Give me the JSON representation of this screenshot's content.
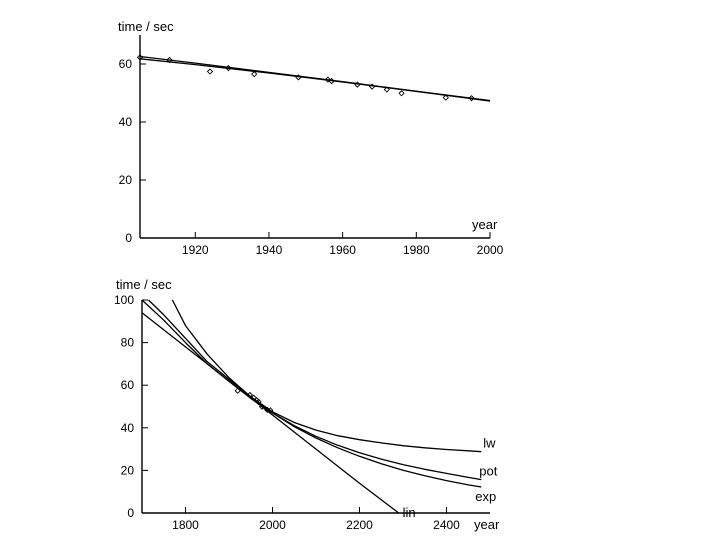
{
  "chart_data": [
    {
      "type": "scatter",
      "ylabel": "time / sec",
      "xlabel": "year",
      "xlim": [
        1905,
        2000
      ],
      "ylim": [
        0,
        70
      ],
      "x_ticks": [
        1920,
        1940,
        1960,
        1980,
        2000
      ],
      "y_ticks": [
        0,
        20,
        40,
        60
      ],
      "x_tick_labels": [
        "1920",
        "1940",
        "1960",
        "1980",
        "2000"
      ],
      "y_tick_labels": [
        "0",
        "20",
        "40",
        "60"
      ],
      "grid": false,
      "points": {
        "x": [
          1905,
          1913,
          1924,
          1929,
          1936,
          1948,
          1956,
          1957,
          1964,
          1968,
          1972,
          1976,
          1988,
          1995
        ],
        "y": [
          62.3,
          61.4,
          57.4,
          58.6,
          56.5,
          55.4,
          54.6,
          54.1,
          52.9,
          52.2,
          51.2,
          49.9,
          48.4,
          48.2
        ]
      },
      "fits": [
        {
          "x": [
            1905,
            1920,
            1940,
            1960,
            1980,
            2000
          ],
          "y": [
            62.6,
            60.3,
            57.1,
            53.9,
            50.6,
            47.4
          ]
        },
        {
          "x": [
            1905,
            1920,
            1940,
            1960,
            1980,
            2000
          ],
          "y": [
            61.8,
            59.8,
            56.9,
            53.8,
            50.6,
            47.2
          ]
        }
      ]
    },
    {
      "type": "line",
      "ylabel": "time / sec",
      "xlabel": "year",
      "xlim": [
        1700,
        2500
      ],
      "ylim": [
        0,
        100
      ],
      "x_ticks": [
        1800,
        2000,
        2200,
        2400
      ],
      "y_ticks": [
        0,
        20,
        40,
        60,
        80,
        100
      ],
      "x_tick_labels": [
        "1800",
        "2000",
        "2200",
        "2400"
      ],
      "y_tick_labels": [
        "0",
        "20",
        "40",
        "60",
        "80",
        "100"
      ],
      "grid": false,
      "series": [
        {
          "name": "lw",
          "x": [
            1770,
            1800,
            1850,
            1900,
            1950,
            2000,
            2050,
            2100,
            2150,
            2200,
            2250,
            2300,
            2350,
            2400,
            2450,
            2480
          ],
          "y": [
            100,
            88,
            74.5,
            63.5,
            54.5,
            47.5,
            42.5,
            38.9,
            36.3,
            34.4,
            32.9,
            31.6,
            30.6,
            29.8,
            29.2,
            28.8
          ]
        },
        {
          "name": "pot",
          "x": [
            1715,
            1750,
            1800,
            1850,
            1900,
            1950,
            2000,
            2050,
            2100,
            2150,
            2200,
            2250,
            2300,
            2350,
            2400,
            2450,
            2480
          ],
          "y": [
            100,
            93,
            82,
            71,
            62.8,
            54.5,
            47,
            41,
            36,
            31.8,
            28.3,
            25.3,
            22.7,
            20.5,
            18.6,
            16.7,
            15.7
          ]
        },
        {
          "name": "exp",
          "x": [
            1700,
            1750,
            1800,
            1850,
            1900,
            1950,
            2000,
            2050,
            2100,
            2150,
            2200,
            2250,
            2300,
            2350,
            2400,
            2450,
            2480
          ],
          "y": [
            100,
            90.5,
            80,
            70,
            61.8,
            53.8,
            47,
            40.5,
            35.2,
            30.6,
            26.6,
            23.1,
            20.1,
            17.5,
            15.2,
            13.2,
            12.2
          ]
        },
        {
          "name": "lin",
          "x": [
            1700,
            1800,
            1900,
            2000,
            2100,
            2200,
            2290
          ],
          "y": [
            94,
            78,
            62,
            46,
            30,
            14,
            0
          ]
        }
      ],
      "points": {
        "x": [
          1920,
          1948,
          1957,
          1964,
          1968,
          1976,
          1988,
          1995
        ],
        "y": [
          57.4,
          55.4,
          54.1,
          52.9,
          52.2,
          49.9,
          48.4,
          48.2
        ]
      }
    }
  ]
}
